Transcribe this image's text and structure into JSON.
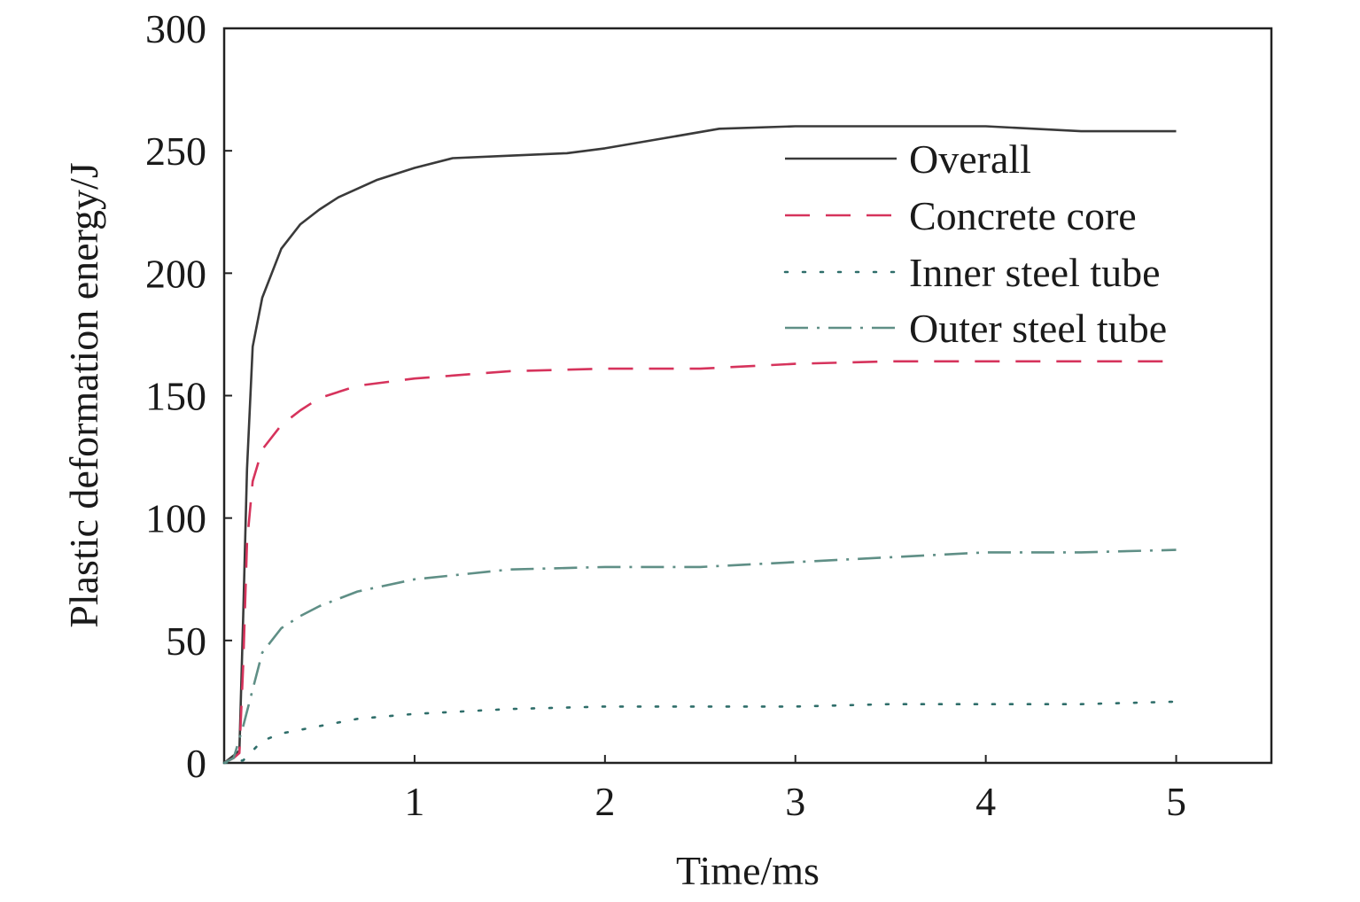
{
  "chart_data": {
    "type": "line",
    "title": "",
    "xlabel": "Time/ms",
    "ylabel": "Plastic deformation energy/J",
    "xlim": [
      0,
      5.5
    ],
    "ylim": [
      0,
      300
    ],
    "xticks": [
      1,
      2,
      3,
      4,
      5
    ],
    "yticks": [
      0,
      50,
      100,
      150,
      200,
      250,
      300
    ],
    "grid": false,
    "legend_position": "top-right",
    "series": [
      {
        "name": "Overall",
        "color": "#3a3a3a",
        "style": "solid",
        "x": [
          0,
          0.05,
          0.08,
          0.1,
          0.12,
          0.15,
          0.2,
          0.3,
          0.4,
          0.5,
          0.6,
          0.8,
          1.0,
          1.2,
          1.5,
          1.8,
          2.0,
          2.3,
          2.6,
          3.0,
          3.5,
          4.0,
          4.5,
          5.0
        ],
        "y": [
          0,
          3,
          5,
          60,
          120,
          170,
          190,
          210,
          220,
          226,
          231,
          238,
          243,
          247,
          248,
          249,
          251,
          255,
          259,
          260,
          260,
          260,
          258,
          258
        ]
      },
      {
        "name": "Concrete core",
        "color": "#d6335c",
        "style": "dashed",
        "x": [
          0,
          0.05,
          0.08,
          0.1,
          0.12,
          0.15,
          0.2,
          0.3,
          0.4,
          0.5,
          0.7,
          1.0,
          1.5,
          2.0,
          2.5,
          3.0,
          3.5,
          4.0,
          4.5,
          5.0
        ],
        "y": [
          0,
          2,
          4,
          40,
          90,
          115,
          128,
          138,
          144,
          149,
          154,
          157,
          160,
          161,
          161,
          163,
          164,
          164,
          164,
          164
        ]
      },
      {
        "name": "Inner steel tube",
        "color": "#2f6e6a",
        "style": "dotted",
        "x": [
          0,
          0.1,
          0.15,
          0.2,
          0.3,
          0.5,
          0.7,
          1.0,
          1.5,
          2.0,
          2.5,
          3.0,
          3.5,
          4.0,
          4.5,
          5.0
        ],
        "y": [
          0,
          1,
          5,
          9,
          12,
          15,
          18,
          20,
          22,
          23,
          23,
          23,
          24,
          24,
          24,
          25
        ]
      },
      {
        "name": "Outer steel tube",
        "color": "#5f8f86",
        "style": "dashdot",
        "x": [
          0,
          0.05,
          0.1,
          0.15,
          0.2,
          0.3,
          0.4,
          0.5,
          0.7,
          1.0,
          1.5,
          2.0,
          2.5,
          3.0,
          3.5,
          4.0,
          4.5,
          5.0
        ],
        "y": [
          0,
          2,
          15,
          30,
          45,
          55,
          60,
          64,
          70,
          75,
          79,
          80,
          80,
          82,
          84,
          86,
          86,
          87
        ]
      }
    ]
  }
}
